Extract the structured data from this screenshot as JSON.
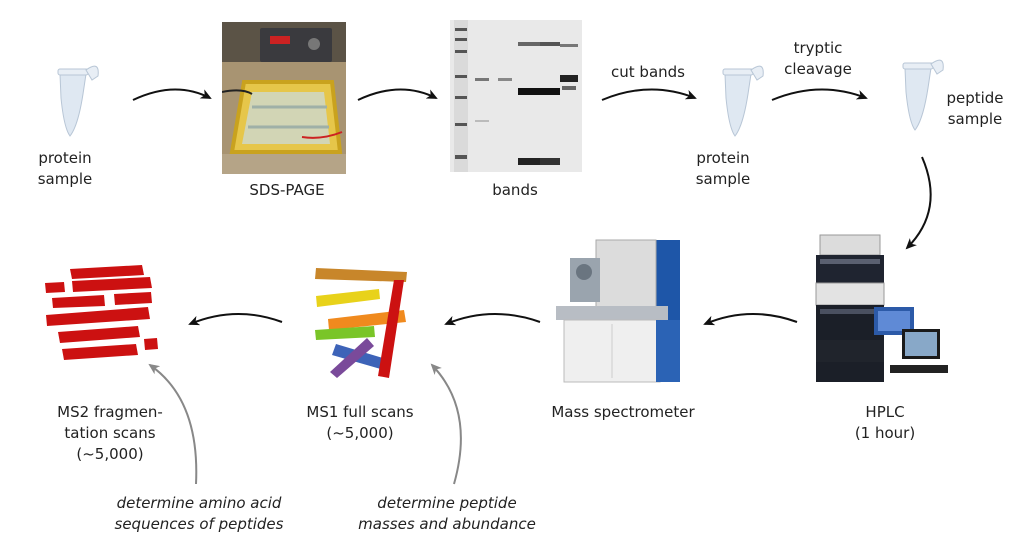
{
  "steps": {
    "protein_sample_1": "protein\nsample",
    "sds_page": "SDS-PAGE",
    "bands": "bands",
    "cut_bands": "cut bands",
    "protein_sample_2": "protein\nsample",
    "tryptic_cleavage": "tryptic\ncleavage",
    "peptide_sample": "peptide\nsample",
    "hplc": "HPLC\n(1 hour)",
    "mass_spectrometer": "Mass spectrometer",
    "ms1": "MS1 full scans\n(~5,000)",
    "ms2": "MS2 fragmen-\ntation scans\n(~5,000)"
  },
  "annotations": {
    "ms2_note": "determine amino acid\nsequences of peptides",
    "ms1_note": "determine peptide\nmasses and abundance"
  },
  "colors": {
    "ms2_bars": "#cc1111",
    "ms1_bars": [
      "#c8862a",
      "#e8d21a",
      "#f08a1e",
      "#7ac528",
      "#3d63b8",
      "#7a4a9a",
      "#cc1111"
    ],
    "arrow": "#111111",
    "annotation_arrow": "#888888"
  },
  "icons": {
    "tube": "microcentrifuge-tube-icon",
    "gel_box": "electrophoresis-apparatus-photo",
    "gel": "protein-gel-photo",
    "hplc": "hplc-system-photo",
    "ms": "mass-spectrometer-photo"
  }
}
